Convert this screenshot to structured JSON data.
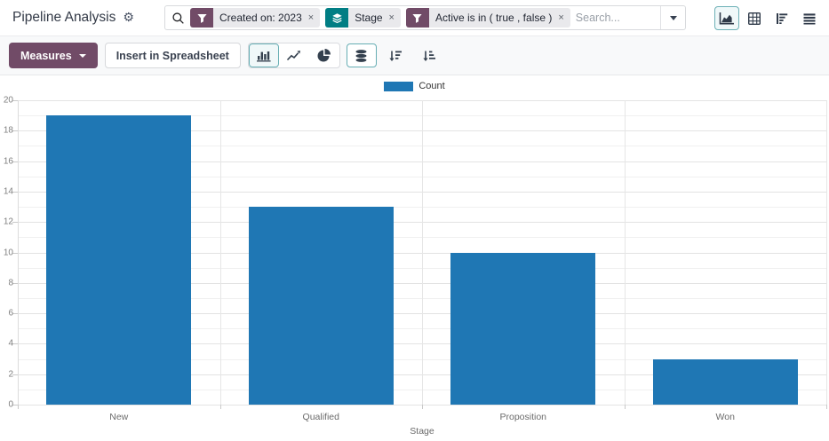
{
  "header": {
    "title": "Pipeline Analysis",
    "search": {
      "placeholder": "Search...",
      "facets": [
        {
          "icon": "filter-funnel-icon",
          "color": "#714B67",
          "label": "Created on: 2023",
          "remove": "×"
        },
        {
          "icon": "group-by-layers-icon",
          "color": "#017E84",
          "label": "Stage",
          "remove": "×"
        },
        {
          "icon": "filter-funnel-icon",
          "color": "#714B67",
          "label": "Active is in ( true , false )",
          "remove": "×"
        }
      ]
    },
    "view_switcher": [
      {
        "name": "graph",
        "selected": true
      },
      {
        "name": "pivot",
        "selected": false
      },
      {
        "name": "cohort",
        "selected": false
      },
      {
        "name": "list",
        "selected": false
      }
    ]
  },
  "toolbar": {
    "measures_label": "Measures",
    "insert_spreadsheet_label": "Insert in Spreadsheet",
    "chart_type_buttons": [
      {
        "name": "bar-chart",
        "selected": true
      },
      {
        "name": "line-chart",
        "selected": false
      },
      {
        "name": "pie-chart",
        "selected": false
      }
    ],
    "stacked_button": {
      "name": "stacked",
      "selected": true
    },
    "sort_buttons": [
      {
        "name": "sort-descending",
        "selected": false
      },
      {
        "name": "sort-ascending",
        "selected": false
      }
    ]
  },
  "chart_data": {
    "type": "bar",
    "title": "",
    "categories": [
      "New",
      "Qualified",
      "Proposition",
      "Won"
    ],
    "series": [
      {
        "name": "Count",
        "color": "#1f77b4",
        "values": [
          19,
          13,
          10,
          3
        ]
      }
    ],
    "xlabel": "Stage",
    "ylabel": "",
    "ylim": [
      0,
      20
    ],
    "ytick_step": 2,
    "grid_step": 1,
    "grid": true,
    "legend": {
      "position": "top",
      "entries": [
        {
          "label": "Count",
          "color": "#1f77b4"
        }
      ]
    }
  },
  "colors": {
    "accent_purple": "#714B67",
    "accent_teal": "#017E84",
    "bar_blue": "#1f77b4",
    "selected_border": "#67aeb4"
  }
}
